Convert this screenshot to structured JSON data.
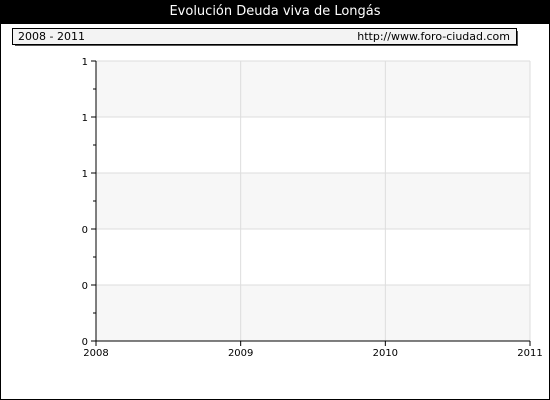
{
  "header": {
    "title": "Evolución Deuda viva de Longás"
  },
  "info": {
    "period": "2008 - 2011",
    "source": "http://www.foro-ciudad.com"
  },
  "colors": {
    "band_fill": "#f7f7f7",
    "grid": "#dddddd",
    "axis": "#000000"
  },
  "chart_data": {
    "type": "line",
    "title": "Evolución Deuda viva de Longás",
    "x": [
      "2008",
      "2009",
      "2010",
      "2011"
    ],
    "series": [],
    "y_tick_labels": [
      "0",
      "0",
      "0",
      "1",
      "1",
      "1"
    ],
    "x_tick_labels": [
      "2008",
      "2009",
      "2010",
      "2011"
    ],
    "grid": true,
    "alternating_bands": true
  }
}
